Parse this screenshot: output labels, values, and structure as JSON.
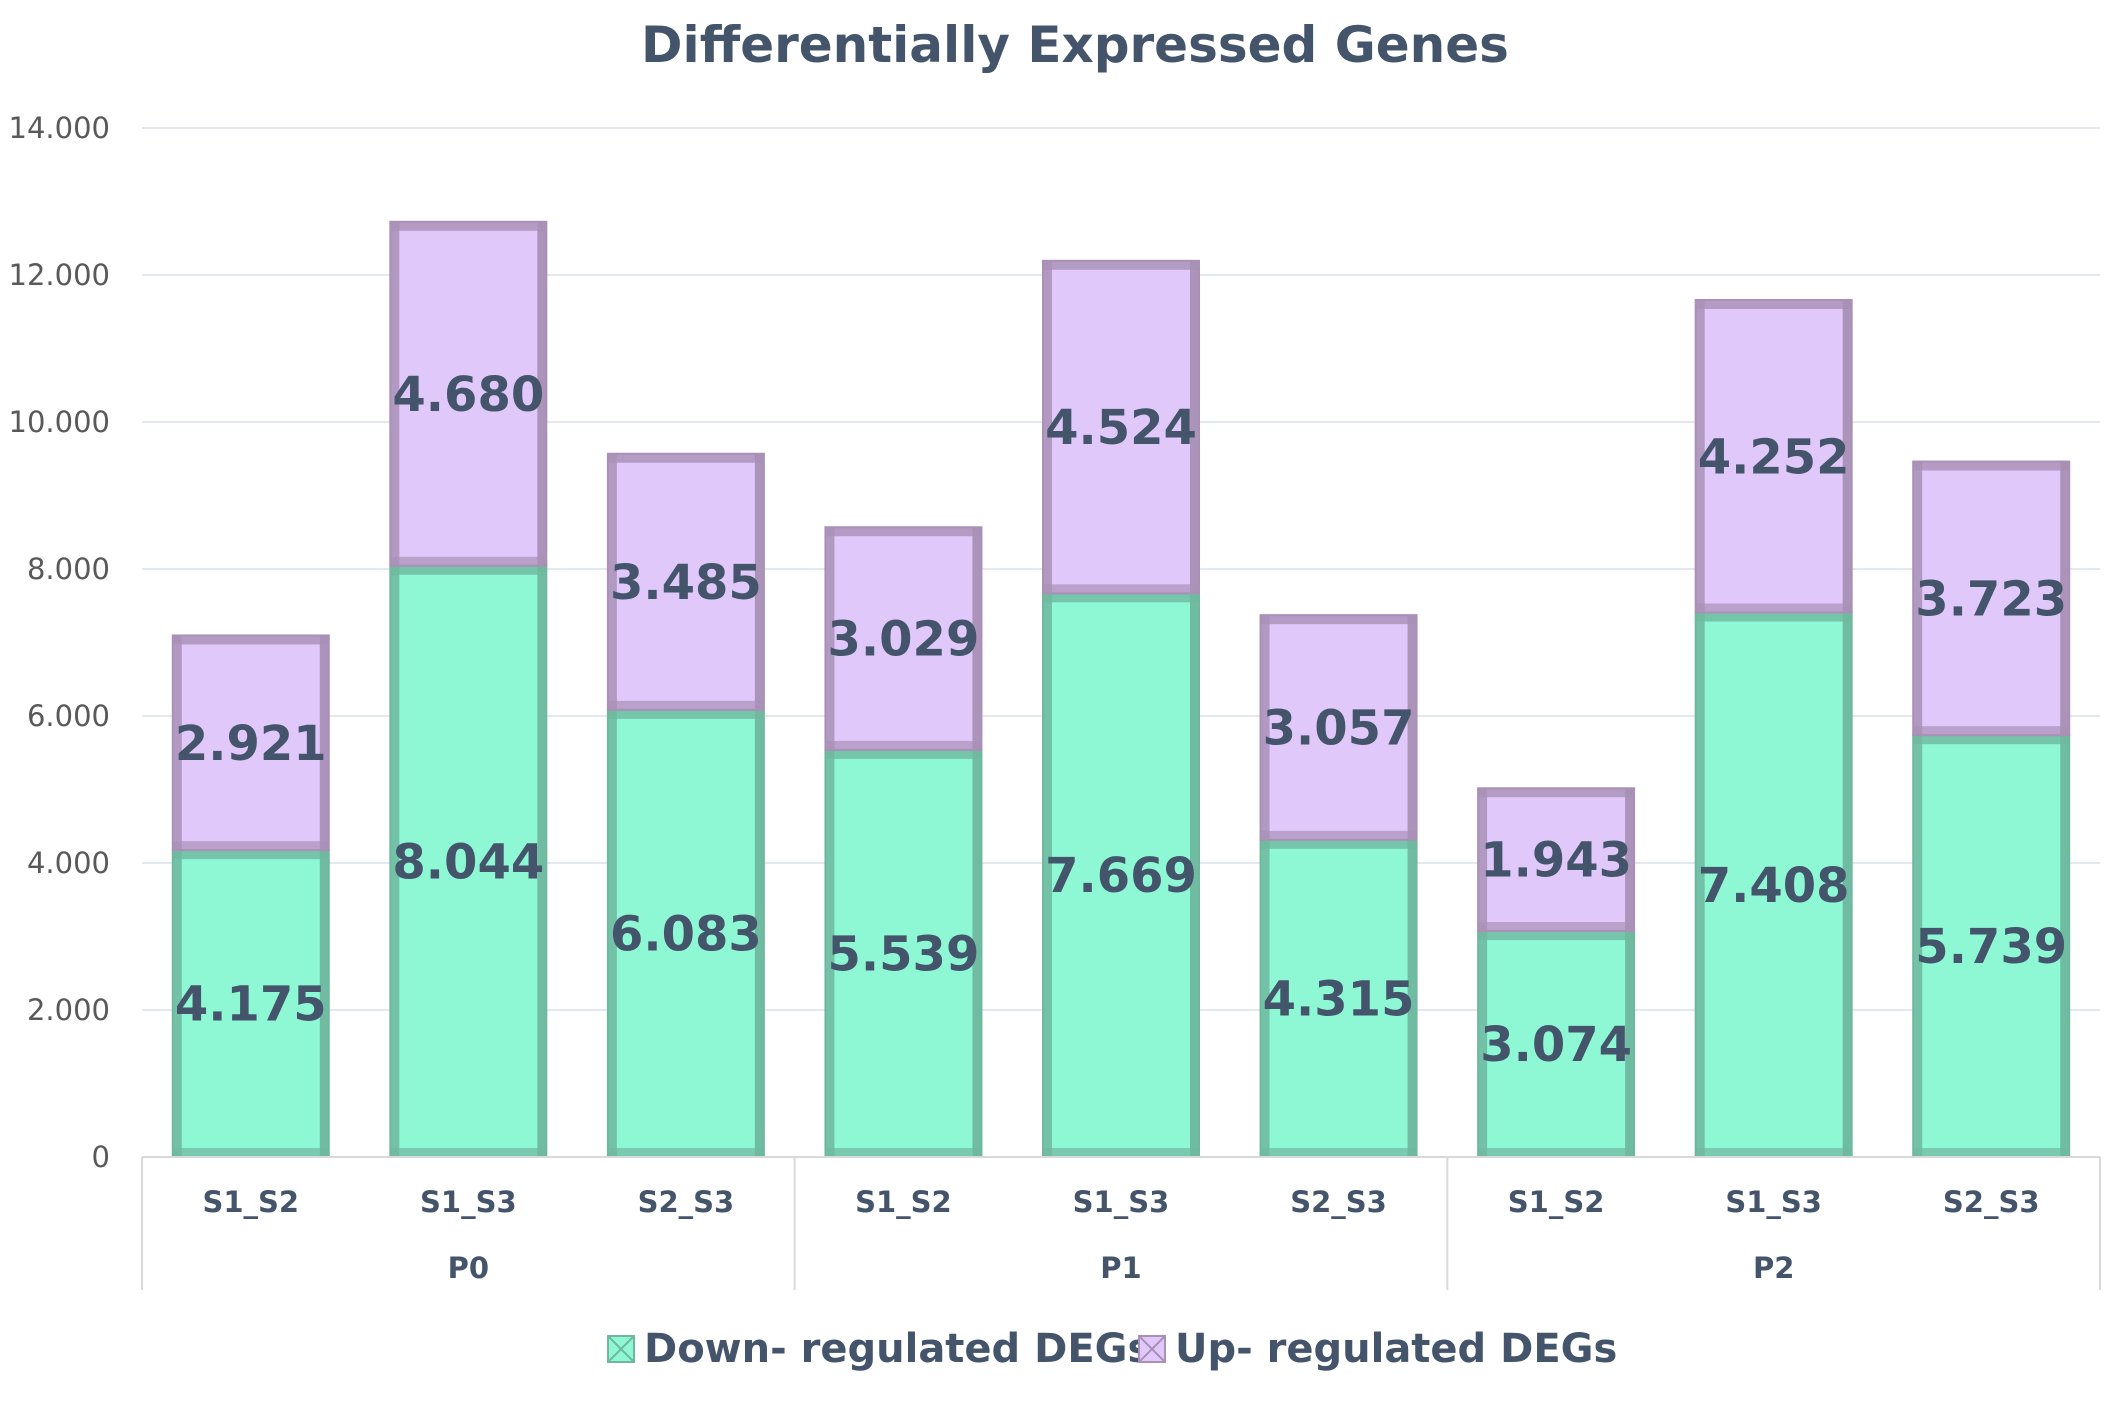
{
  "chart_data": {
    "type": "bar",
    "stacked": true,
    "title": "Differentially Expressed Genes",
    "xlabel": "",
    "ylabel": "",
    "ylim": [
      0,
      14000
    ],
    "yticks": [
      0,
      2000,
      4000,
      6000,
      8000,
      10000,
      12000,
      14000
    ],
    "ytick_labels": [
      "0",
      "2.000",
      "4.000",
      "6.000",
      "8.000",
      "10.000",
      "12.000",
      "14.000"
    ],
    "groups": [
      {
        "name": "P0",
        "categories": [
          "S1_S2",
          "S1_S3",
          "S2_S3"
        ]
      },
      {
        "name": "P1",
        "categories": [
          "S1_S2",
          "S1_S3",
          "S2_S3"
        ]
      },
      {
        "name": "P2",
        "categories": [
          "S1_S2",
          "S1_S3",
          "S2_S3"
        ]
      }
    ],
    "categories": [
      "S1_S2",
      "S1_S3",
      "S2_S3",
      "S1_S2",
      "S1_S3",
      "S2_S3",
      "S1_S2",
      "S1_S3",
      "S2_S3"
    ],
    "series": [
      {
        "name": "Down- regulated DEGs",
        "color": "#8ef8d5",
        "edge_color": "#6fb89f",
        "values": [
          4175,
          8044,
          6083,
          5539,
          7669,
          4315,
          3074,
          7408,
          5739
        ],
        "labels": [
          "4.175",
          "8.044",
          "6.083",
          "5.539",
          "7.669",
          "4.315",
          "3.074",
          "7.408",
          "5.739"
        ]
      },
      {
        "name": "Up- regulated DEGs",
        "color": "#e0c8fb",
        "edge_color": "#a990b6",
        "values": [
          2921,
          4680,
          3485,
          3029,
          4524,
          3057,
          1943,
          4252,
          3723
        ],
        "labels": [
          "2.921",
          "4.680",
          "3.485",
          "3.029",
          "4.524",
          "3.057",
          "1.943",
          "4.252",
          "3.723"
        ]
      }
    ],
    "grid": true,
    "legend": "bottom"
  }
}
